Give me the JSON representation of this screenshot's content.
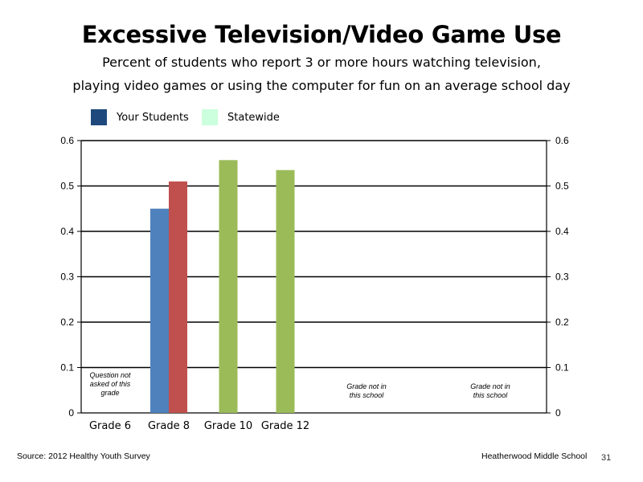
{
  "title": "Excessive Television/Video Game Use",
  "subtitle_line1": "Percent of students who report 3 or more hours watching television,",
  "subtitle_line2": "playing video games or using the computer for fun on an average school day",
  "legend": [
    {
      "label": "Your Students",
      "color": "#1F497D"
    },
    {
      "label": "Statewide",
      "color": "#CCFFDD"
    }
  ],
  "chart_data": {
    "type": "bar",
    "categories": [
      "Grade 6",
      "Grade 8",
      "Grade 10",
      "Grade 12",
      "",
      ""
    ],
    "series": [
      {
        "color": "#4F81BD",
        "values": [
          null,
          0.45,
          null,
          null,
          null,
          null
        ]
      },
      {
        "color": "#C0504D",
        "values": [
          null,
          0.51,
          null,
          null,
          null,
          null
        ]
      },
      {
        "color": "#9BBB59",
        "values": [
          null,
          null,
          0.557,
          0.535,
          null,
          null
        ]
      }
    ],
    "ylim": [
      0,
      0.6
    ],
    "y_ticks": [
      "0",
      "0.1",
      "0.2",
      "0.3",
      "0.4",
      "0.5",
      "0.6"
    ],
    "grid": true,
    "annotations": [
      {
        "category_index": 0,
        "lines": [
          "Question not",
          "asked of this",
          "grade"
        ]
      },
      {
        "category_index": 4,
        "lines": [
          "Grade not in",
          "this school"
        ]
      },
      {
        "category_index": 5,
        "lines": [
          "Grade not in",
          "this school"
        ]
      }
    ]
  },
  "footer": {
    "source": "Source: 2012 Healthy Youth Survey",
    "school": "Heatherwood Middle  School",
    "page": "31"
  }
}
